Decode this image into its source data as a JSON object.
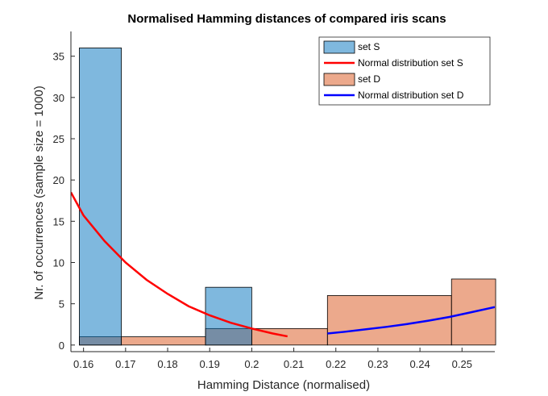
{
  "chart_data": {
    "type": "bar",
    "title": "Normalised Hamming distances of compared iris scans",
    "xlabel": "Hamming Distance (normalised)",
    "ylabel": "Nr. of occurrences (sample size = 1000)",
    "xlim": [
      0.157,
      0.2578
    ],
    "ylim": [
      -0.8,
      38
    ],
    "xticks": [
      0.16,
      0.17,
      0.18,
      0.19,
      0.2,
      0.21,
      0.22,
      0.23,
      0.24,
      0.25
    ],
    "xtick_labels": [
      "0.16",
      "0.17",
      "0.18",
      "0.19",
      "0.2",
      "0.21",
      "0.22",
      "0.23",
      "0.24",
      "0.25"
    ],
    "yticks": [
      0,
      5,
      10,
      15,
      20,
      25,
      30,
      35
    ],
    "ytick_labels": [
      "0",
      "5",
      "10",
      "15",
      "20",
      "25",
      "30",
      "35"
    ],
    "grid": false,
    "legend_position": "top-right",
    "series": [
      {
        "name": "set D",
        "kind": "histogram",
        "color": "#D95319",
        "edges": [
          0.159,
          0.169,
          0.189,
          0.2,
          0.218,
          0.2475,
          0.258
        ],
        "counts": [
          1,
          1,
          2,
          2,
          6,
          8
        ]
      },
      {
        "name": "set S",
        "kind": "histogram",
        "color": "#0072BD",
        "edges": [
          0.159,
          0.169,
          0.189,
          0.2
        ],
        "counts": [
          36,
          0,
          7
        ]
      },
      {
        "name": "Normal distribution set S",
        "kind": "line",
        "color": "#FF0000",
        "x": [
          0.157,
          0.16,
          0.165,
          0.17,
          0.175,
          0.18,
          0.185,
          0.19,
          0.195,
          0.2,
          0.205,
          0.2085
        ],
        "y": [
          18.5,
          15.7,
          12.6,
          10.0,
          7.9,
          6.2,
          4.7,
          3.6,
          2.7,
          2.0,
          1.4,
          1.05
        ]
      },
      {
        "name": "Normal distribution set D",
        "kind": "line",
        "color": "#0000FF",
        "x": [
          0.218,
          0.222,
          0.227,
          0.232,
          0.237,
          0.242,
          0.247,
          0.252,
          0.2578
        ],
        "y": [
          1.4,
          1.6,
          1.9,
          2.2,
          2.55,
          2.95,
          3.4,
          3.95,
          4.6
        ]
      }
    ],
    "legend": [
      {
        "label": "set S",
        "kind": "patch",
        "color": "#0072BD"
      },
      {
        "label": "Normal distribution set S",
        "kind": "line",
        "color": "#FF0000"
      },
      {
        "label": "set D",
        "kind": "patch",
        "color": "#D95319"
      },
      {
        "label": "Normal distribution set D",
        "kind": "line",
        "color": "#0000FF"
      }
    ]
  }
}
